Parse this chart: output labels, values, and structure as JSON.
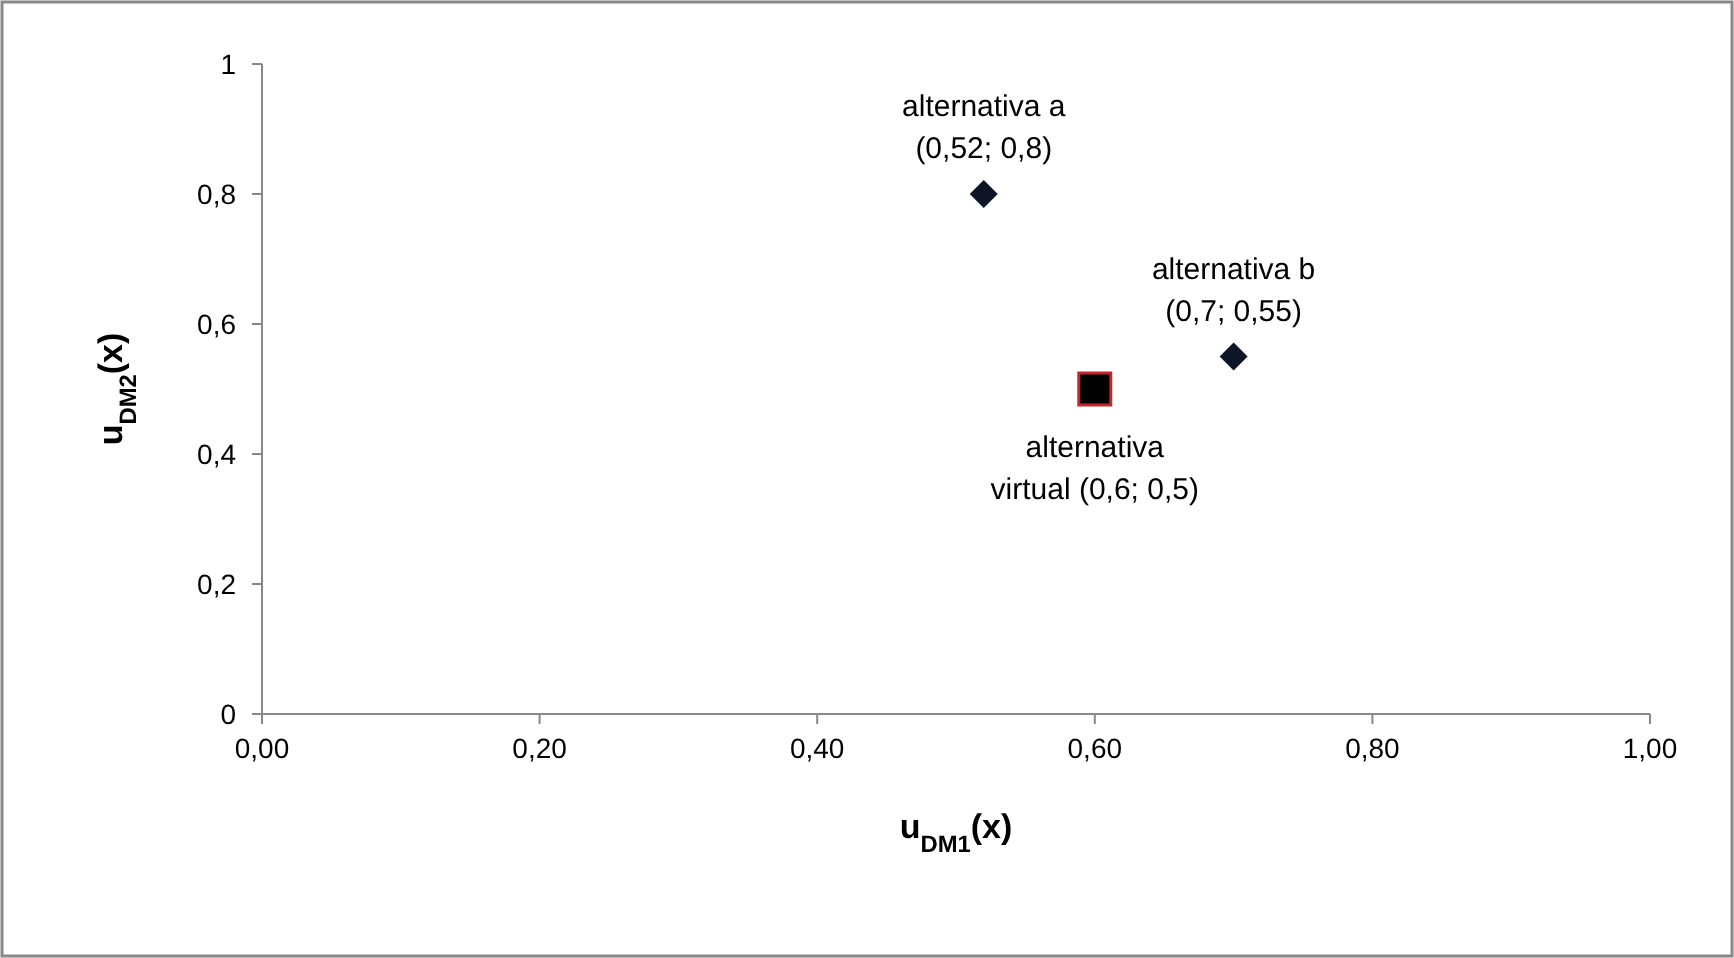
{
  "chart_data": {
    "type": "scatter",
    "xlabel": "u$_{DM1}$(x)",
    "ylabel": "u$_{DM2}$(x)",
    "xlim": [
      0,
      1
    ],
    "ylim": [
      0,
      1
    ],
    "xticks": [
      {
        "value": 0,
        "label": "0,00"
      },
      {
        "value": 0.2,
        "label": "0,20"
      },
      {
        "value": 0.4,
        "label": "0,40"
      },
      {
        "value": 0.6,
        "label": "0,60"
      },
      {
        "value": 0.8,
        "label": "0,80"
      },
      {
        "value": 1,
        "label": "1,00"
      }
    ],
    "yticks": [
      0,
      {
        "value": 0.2,
        "label": "0,2"
      },
      {
        "value": 0.4,
        "label": "0,4"
      },
      {
        "value": 0.6,
        "label": "0,6"
      },
      {
        "value": 0.8,
        "label": "0,8"
      },
      1
    ],
    "grid": false,
    "series": [
      {
        "color": "#0d1526",
        "marker": "diamond",
        "x": [
          0.52,
          0.7
        ],
        "values": [
          0.8,
          0.55
        ]
      },
      {
        "color": "#000000",
        "marker": "square",
        "x": [
          0.6
        ],
        "values": [
          0.5
        ]
      }
    ],
    "annotations": [
      {
        "text": "alternativa a\n(0,52; 0,8)",
        "x": 0.52,
        "y": 0.8
      },
      {
        "text": "alternativa b\n(0,7; 0,55)",
        "x": 0.7,
        "y": 0.55
      },
      {
        "text": "alternativa\nvirtual (0,6; 0,5)",
        "x": 0.6,
        "y": 0.5
      }
    ]
  }
}
